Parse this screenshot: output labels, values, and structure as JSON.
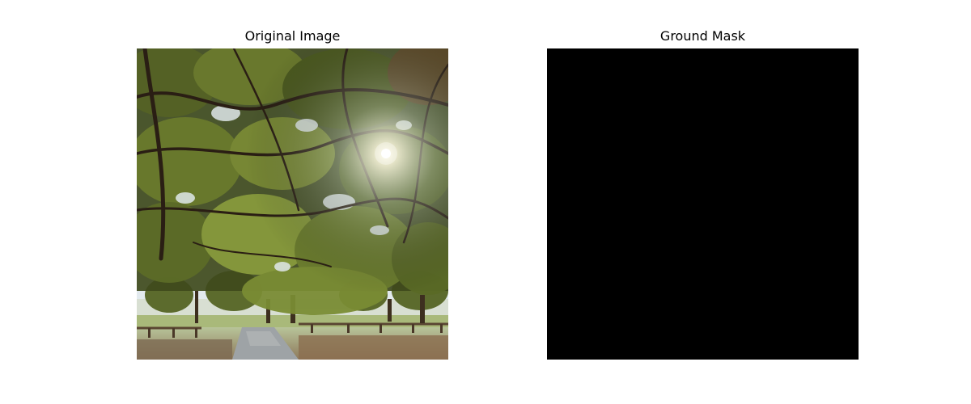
{
  "panels": [
    {
      "title": "Original Image",
      "content": "photo"
    },
    {
      "title": "Ground Mask",
      "content": "mask"
    }
  ],
  "colors": {
    "background": "#ffffff",
    "mask_fill": "#000000",
    "title_text": "#000000"
  }
}
